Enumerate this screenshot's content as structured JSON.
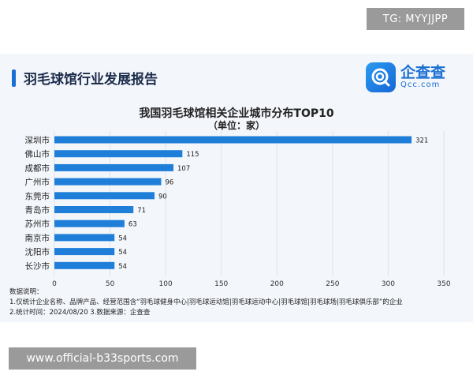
{
  "watermark": {
    "tg": "TG: MYYJJPP",
    "url": "www.official-b33sports.com"
  },
  "header": {
    "title": "羽毛球馆行业发展报告",
    "brand_name": "企查查",
    "brand_sub": "Qcc.com",
    "accent_color": "#1a6fd3"
  },
  "chart_data": {
    "type": "bar",
    "orientation": "horizontal",
    "title": "我国羽毛球馆相关企业城市分布TOP10",
    "subtitle": "（单位：家）",
    "categories": [
      "深圳市",
      "佛山市",
      "成都市",
      "广州市",
      "东莞市",
      "青岛市",
      "苏州市",
      "南京市",
      "沈阳市",
      "长沙市"
    ],
    "values": [
      321,
      115,
      107,
      96,
      90,
      71,
      63,
      54,
      54,
      54
    ],
    "xlim": [
      0,
      350
    ],
    "xticks": [
      0,
      50,
      100,
      150,
      200,
      250,
      300,
      350
    ],
    "grid": true,
    "bar_color": "#1f7fd8"
  },
  "notes": {
    "heading": "数据说明：",
    "line1": "1.仅统计企业名称、品牌产品、经营范围含“羽毛球健身中心|羽毛球运动馆|羽毛球运动中心|羽毛球馆|羽毛球场|羽毛球俱乐部”的企业",
    "line2": "2.统计时间：2024/08/20    3.数据来源：企查查"
  }
}
